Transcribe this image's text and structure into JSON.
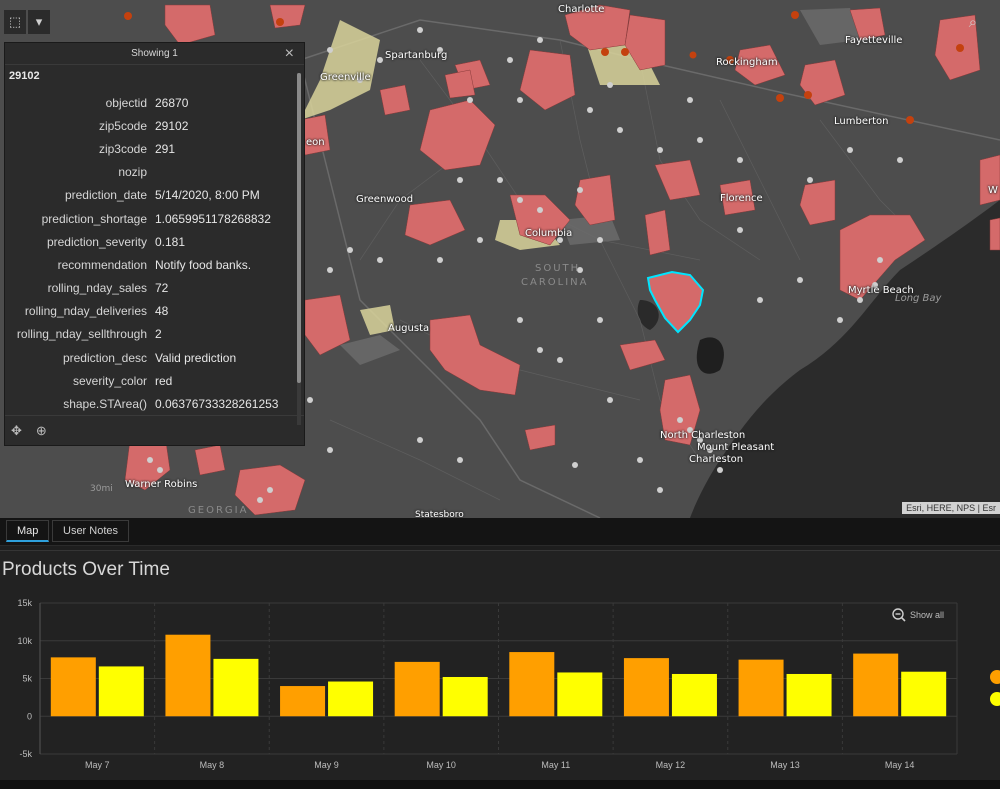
{
  "map": {
    "labels": [
      {
        "text": "Charlotte",
        "cls": ""
      },
      {
        "text": "Spartanburg",
        "cls": ""
      },
      {
        "text": "Greenville",
        "cls": ""
      },
      {
        "text": "Fayetteville",
        "cls": ""
      },
      {
        "text": "Rockingham",
        "cls": ""
      },
      {
        "text": "Lumberton",
        "cls": ""
      },
      {
        "text": "Greenwood",
        "cls": ""
      },
      {
        "text": "Columbia",
        "cls": ""
      },
      {
        "text": "SOUTH",
        "cls": "state"
      },
      {
        "text": "CAROLINA",
        "cls": "state"
      },
      {
        "text": "Florence",
        "cls": ""
      },
      {
        "text": "Myrtle Beach",
        "cls": ""
      },
      {
        "text": "Long Bay",
        "cls": "water"
      },
      {
        "text": "Augusta",
        "cls": ""
      },
      {
        "text": "North Charleston",
        "cls": ""
      },
      {
        "text": "Mount Pleasant",
        "cls": ""
      },
      {
        "text": "Charleston",
        "cls": ""
      },
      {
        "text": "Warner Robins",
        "cls": ""
      },
      {
        "text": "GEORGIA",
        "cls": "state"
      },
      {
        "text": "Statesboro",
        "cls": ""
      },
      {
        "text": "30mi",
        "cls": "scale"
      },
      {
        "text": "eon",
        "cls": ""
      },
      {
        "text": "W",
        "cls": ""
      }
    ],
    "attribution": "Esri, HERE, NPS | Esr",
    "tools": {
      "select_icon": "select-icon",
      "dropdown_icon": "chevron-down-icon",
      "search_icon": "search-icon"
    }
  },
  "popup": {
    "header": "Showing 1",
    "close": "×",
    "title": "29102",
    "fields": [
      {
        "key": "objectid",
        "value": "26870"
      },
      {
        "key": "zip5code",
        "value": "29102"
      },
      {
        "key": "zip3code",
        "value": "291"
      },
      {
        "key": "nozip",
        "value": ""
      },
      {
        "key": "prediction_date",
        "value": "5/14/2020, 8:00 PM"
      },
      {
        "key": "prediction_shortage",
        "value": "1.0659951178268832"
      },
      {
        "key": "prediction_severity",
        "value": "0.181"
      },
      {
        "key": "recommendation",
        "value": "Notify food banks."
      },
      {
        "key": "rolling_nday_sales",
        "value": "72"
      },
      {
        "key": "rolling_nday_deliveries",
        "value": "48"
      },
      {
        "key": "rolling_nday_sellthrough",
        "value": "2"
      },
      {
        "key": "prediction_desc",
        "value": "Valid prediction"
      },
      {
        "key": "severity_color",
        "value": "red"
      },
      {
        "key": "shape.STArea()",
        "value": "0.06376733328261253"
      }
    ],
    "footer": {
      "pan_icon": "✥",
      "zoom_icon": "⊕"
    }
  },
  "tabs": [
    {
      "label": "Map",
      "active": true
    },
    {
      "label": "User Notes",
      "active": false
    }
  ],
  "chart": {
    "title": "Products Over Time",
    "show_all": "Show all"
  },
  "chart_data": {
    "type": "bar",
    "title": "Products Over Time",
    "categories": [
      "May 7",
      "May 8",
      "May 9",
      "May 10",
      "May 11",
      "May 12",
      "May 13",
      "May 14"
    ],
    "series": [
      {
        "color": "#ff9f00",
        "values": [
          7800,
          10800,
          4000,
          7200,
          8500,
          7700,
          7500,
          8300
        ]
      },
      {
        "color": "#ffff00",
        "values": [
          6600,
          7600,
          4600,
          5200,
          5800,
          5600,
          5600,
          5900
        ]
      }
    ],
    "ylim": [
      -5000,
      15000
    ],
    "yticks": [
      {
        "value": 15000,
        "label": "15k"
      },
      {
        "value": 10000,
        "label": "10k"
      },
      {
        "value": 5000,
        "label": "5k"
      },
      {
        "value": 0,
        "label": "0"
      },
      {
        "value": -5000,
        "label": "-5k"
      }
    ],
    "grid": true
  },
  "colors": {
    "accent": "#2ea0dc",
    "highlight": "#00e5ff",
    "zip_fill": "#d46a6a"
  }
}
